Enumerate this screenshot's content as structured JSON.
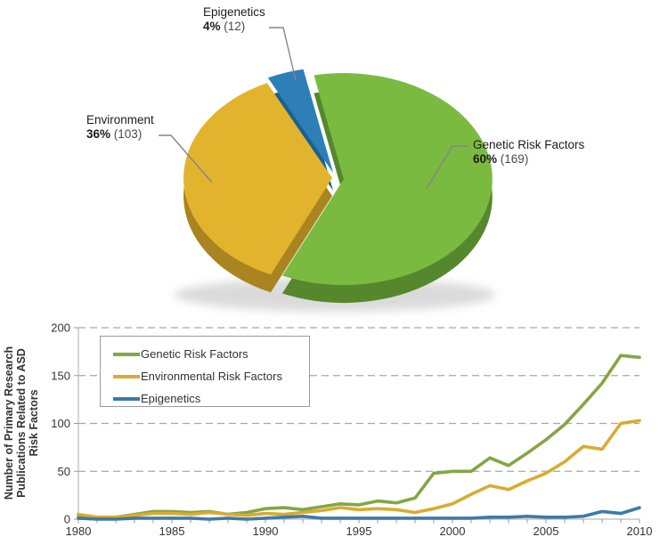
{
  "pie": {
    "slices": [
      {
        "label": "Epigenetics",
        "pct": "4%",
        "count": "(12)",
        "value": 4,
        "color": "#2e7fb8",
        "side_color": "#1d5f93"
      },
      {
        "label": "Genetic Risk Factors",
        "pct": "60%",
        "count": "(169)",
        "value": 60,
        "color": "#7bba41",
        "side_color": "#55882c"
      },
      {
        "label": "Environment",
        "pct": "36%",
        "count": "(103)",
        "value": 36,
        "color": "#e2b42e",
        "side_color": "#a98420"
      }
    ]
  },
  "chart_data": {
    "type": "line",
    "title": "",
    "xlabel": "",
    "ylabel": "Number of Primary Research Publications Related to ASD Risk Factors",
    "ylabel_lines": [
      "Number of Primary Research",
      "Publications Related to ASD",
      "Risk Factors"
    ],
    "ylim": [
      0,
      200
    ],
    "yticks": [
      0,
      50,
      100,
      150,
      200
    ],
    "xticks": [
      1980,
      1985,
      1990,
      1995,
      2000,
      2005,
      2010
    ],
    "grid": "dashed-horizontal",
    "legend_position": "top-left",
    "x": [
      1980,
      1981,
      1982,
      1983,
      1984,
      1985,
      1986,
      1987,
      1988,
      1989,
      1990,
      1991,
      1992,
      1993,
      1994,
      1995,
      1996,
      1997,
      1998,
      1999,
      2000,
      2001,
      2002,
      2003,
      2004,
      2005,
      2006,
      2007,
      2008,
      2009,
      2010
    ],
    "series": [
      {
        "name": "Genetic Risk Factors",
        "color": "#82a743",
        "values": [
          3,
          2,
          2,
          5,
          8,
          8,
          7,
          8,
          5,
          7,
          11,
          12,
          10,
          13,
          16,
          15,
          19,
          17,
          22,
          48,
          50,
          50,
          64,
          56,
          69,
          83,
          99,
          120,
          142,
          171,
          169
        ]
      },
      {
        "name": "Environmental Risk Factors",
        "color": "#d9ab30",
        "values": [
          5,
          2,
          2,
          4,
          6,
          6,
          5,
          7,
          5,
          4,
          6,
          5,
          7,
          9,
          12,
          10,
          11,
          10,
          7,
          11,
          16,
          26,
          35,
          31,
          40,
          48,
          60,
          76,
          73,
          100,
          103
        ]
      },
      {
        "name": "Epigenetics",
        "color": "#3d7aa8",
        "values": [
          1,
          0,
          0,
          1,
          1,
          1,
          1,
          0,
          1,
          0,
          1,
          2,
          3,
          1,
          1,
          1,
          1,
          1,
          1,
          1,
          1,
          1,
          2,
          2,
          3,
          2,
          2,
          3,
          8,
          6,
          12
        ]
      }
    ]
  }
}
